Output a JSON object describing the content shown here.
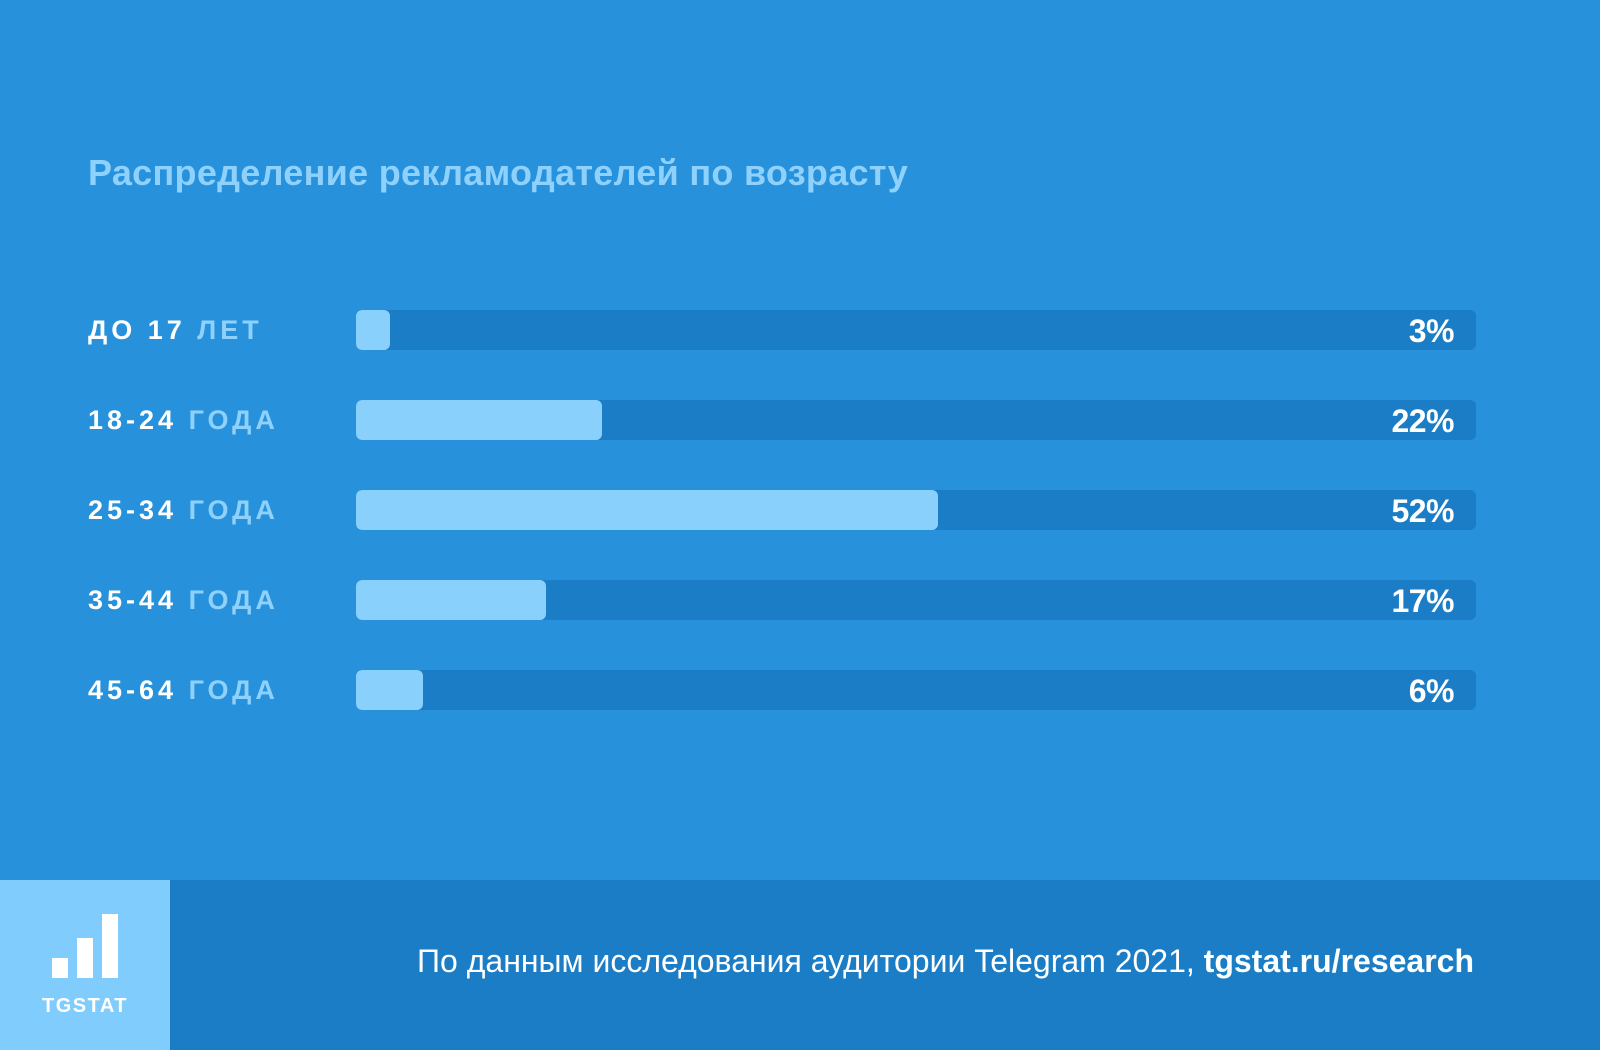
{
  "chart_data": {
    "type": "bar",
    "orientation": "horizontal",
    "title": "Распределение рекламодателей по возрасту",
    "categories": [
      {
        "num": "ДО 17",
        "unit": "ЛЕТ"
      },
      {
        "num": "18-24",
        "unit": "ГОДА"
      },
      {
        "num": "25-34",
        "unit": "ГОДА"
      },
      {
        "num": "35-44",
        "unit": "ГОДА"
      },
      {
        "num": "45-64",
        "unit": "ГОДА"
      }
    ],
    "values": [
      3,
      22,
      52,
      17,
      6
    ],
    "value_labels": [
      "3%",
      "22%",
      "52%",
      "17%",
      "6%"
    ],
    "xlim": [
      0,
      100
    ],
    "grid": false,
    "legend": "none",
    "colors": {
      "background": "#2792db",
      "track": "#1a7dc5",
      "fill": "#89d0fc",
      "title": "#8fd1fd",
      "unit": "#8fd1fd"
    }
  },
  "footer": {
    "logo_text": "TGSTAT",
    "logo_icon": "bar-chart-icon",
    "source_text": "По данным исследования аудитории Telegram 2021, ",
    "source_link": "tgstat.ru/research",
    "colors": {
      "background": "#1a7dc5",
      "logo_box": "#80cdfd"
    }
  }
}
